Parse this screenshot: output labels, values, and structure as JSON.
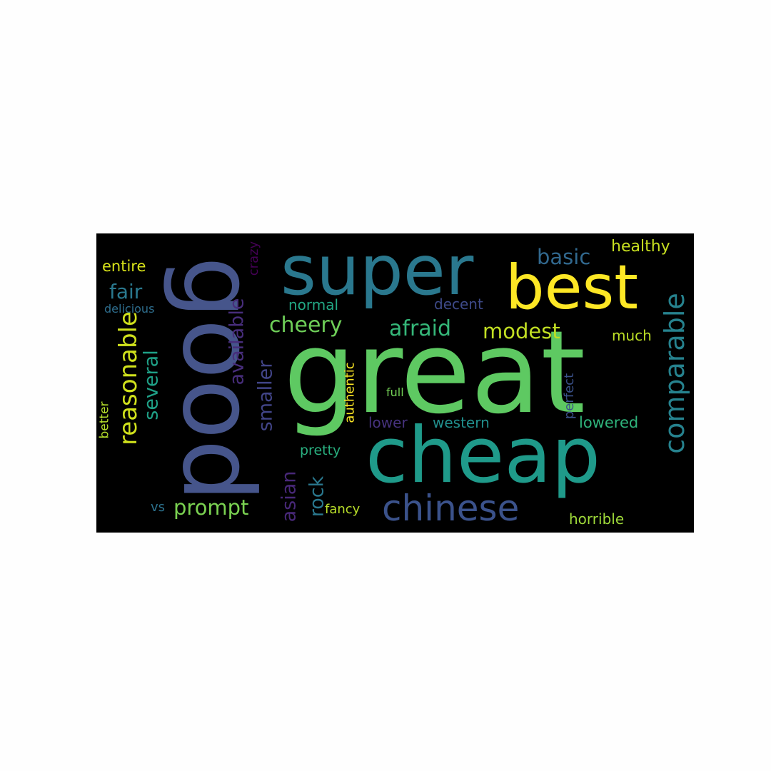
{
  "words": {
    "great": {
      "text": "great",
      "color": "#5ec962"
    },
    "good": {
      "text": "good",
      "color": "#46558b"
    },
    "cheap": {
      "text": "cheap",
      "color": "#1f9a8a"
    },
    "super": {
      "text": "super",
      "color": "#2a788e"
    },
    "best": {
      "text": "best",
      "color": "#fde725"
    },
    "chinese": {
      "text": "chinese",
      "color": "#3b528b"
    },
    "comparable": {
      "text": "comparable",
      "color": "#26828e"
    },
    "reasonable": {
      "text": "reasonable",
      "color": "#d0e11c"
    },
    "cheery": {
      "text": "cheery",
      "color": "#6ece58"
    },
    "afraid": {
      "text": "afraid",
      "color": "#35b779"
    },
    "modest": {
      "text": "modest",
      "color": "#c2df23"
    },
    "prompt": {
      "text": "prompt",
      "color": "#7ad151"
    },
    "fair": {
      "text": "fair",
      "color": "#2a788e"
    },
    "several": {
      "text": "several",
      "color": "#1fa187"
    },
    "available": {
      "text": "available",
      "color": "#472d7b"
    },
    "smaller": {
      "text": "smaller",
      "color": "#414487"
    },
    "asian": {
      "text": "asian",
      "color": "#482878"
    },
    "rock": {
      "text": "rock",
      "color": "#2a788e"
    },
    "basic": {
      "text": "basic",
      "color": "#31688e"
    },
    "healthy": {
      "text": "healthy",
      "color": "#c8e020"
    },
    "entire": {
      "text": "entire",
      "color": "#d8e219"
    },
    "delicious": {
      "text": "delicious",
      "color": "#2e6e8e"
    },
    "crazy": {
      "text": "crazy",
      "color": "#440154"
    },
    "normal": {
      "text": "normal",
      "color": "#22a884"
    },
    "decent": {
      "text": "decent",
      "color": "#3e4a89"
    },
    "much": {
      "text": "much",
      "color": "#bddf26"
    },
    "authentic": {
      "text": "authentic",
      "color": "#fde725"
    },
    "full": {
      "text": "full",
      "color": "#73d056"
    },
    "perfect": {
      "text": "perfect",
      "color": "#3b528b"
    },
    "lowered": {
      "text": "lowered",
      "color": "#2fb47c"
    },
    "lower": {
      "text": "lower",
      "color": "#46327e"
    },
    "western": {
      "text": "western",
      "color": "#218f8d"
    },
    "better": {
      "text": "better",
      "color": "#b5de2b"
    },
    "pretty": {
      "text": "pretty",
      "color": "#29af7f"
    },
    "vs": {
      "text": "vs",
      "color": "#2c728e"
    },
    "fancy": {
      "text": "fancy",
      "color": "#b8de29"
    },
    "horrible": {
      "text": "horrible",
      "color": "#9fda3a"
    }
  }
}
